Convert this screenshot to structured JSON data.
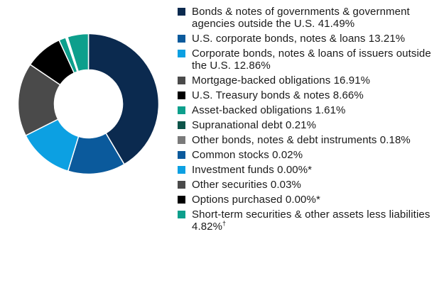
{
  "chart_data": {
    "type": "pie",
    "donut": true,
    "title": "",
    "legend_position": "right",
    "slices": [
      {
        "label": "Bonds & notes of governments & government agencies outside the U.S.",
        "value": 41.49,
        "value_text": "41.49%",
        "suffix": "",
        "color": "#0b2a4f"
      },
      {
        "label": "U.S. corporate bonds, notes & loans",
        "value": 13.21,
        "value_text": "13.21%",
        "suffix": "",
        "color": "#0b5a9c"
      },
      {
        "label": "Corporate bonds, notes & loans of issuers outside the U.S.",
        "value": 12.86,
        "value_text": "12.86%",
        "suffix": "",
        "color": "#0ca0e2"
      },
      {
        "label": "Mortgage-backed obligations",
        "value": 16.91,
        "value_text": "16.91%",
        "suffix": "",
        "color": "#4a4a4a"
      },
      {
        "label": "U.S. Treasury bonds & notes",
        "value": 8.66,
        "value_text": "8.66%",
        "suffix": "",
        "color": "#000000"
      },
      {
        "label": "Asset-backed obligations",
        "value": 1.61,
        "value_text": "1.61%",
        "suffix": "",
        "color": "#0d9f8c"
      },
      {
        "label": "Supranational debt",
        "value": 0.21,
        "value_text": "0.21%",
        "suffix": "",
        "color": "#0d5449"
      },
      {
        "label": "Other bonds, notes & debt instruments",
        "value": 0.18,
        "value_text": "0.18%",
        "suffix": "",
        "color": "#7a7a7a"
      },
      {
        "label": "Common stocks",
        "value": 0.02,
        "value_text": "0.02%",
        "suffix": "",
        "color": "#0b5a9c"
      },
      {
        "label": "Investment funds",
        "value": 0.0,
        "value_text": "0.00%",
        "suffix": "*",
        "color": "#0ca0e2"
      },
      {
        "label": "Other securities",
        "value": 0.03,
        "value_text": "0.03%",
        "suffix": "",
        "color": "#4a4a4a"
      },
      {
        "label": "Options purchased",
        "value": 0.0,
        "value_text": "0.00%",
        "suffix": "*",
        "color": "#000000"
      },
      {
        "label": "Short-term securities & other assets less liabilities",
        "value": 4.82,
        "value_text": "4.82%",
        "suffix": "†",
        "color": "#0d9f8c"
      }
    ]
  }
}
